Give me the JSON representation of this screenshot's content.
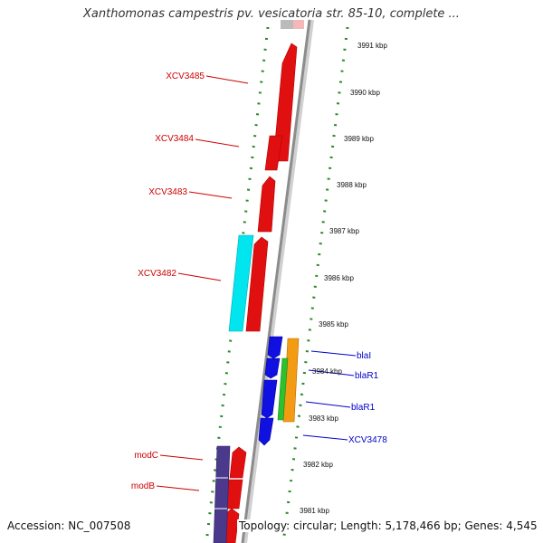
{
  "title": "Xanthomonas campestris pv. vesicatoria str. 85-10, complete ...",
  "accession": "Accession: NC_007508",
  "topology": "Topology: circular; Length: 5,178,466 bp; Genes: 4,545",
  "colors": {
    "forward_label": "#cc0000",
    "reverse_label": "#0000cc",
    "tick_marks": "#2a8a2a",
    "backbone": "#9a9a9a"
  },
  "scale_labels": [
    "3991 kbp",
    "3990 kbp",
    "3989 kbp",
    "3988 kbp",
    "3987 kbp",
    "3986 kbp",
    "3985 kbp",
    "3984 kbp",
    "3983 kbp",
    "3982 kbp",
    "3981 kbp"
  ],
  "left_gene_labels": [
    "XCV3485",
    "XCV3484",
    "XCV3483",
    "XCV3482",
    "modC",
    "modB"
  ],
  "right_gene_labels": [
    "blaI",
    "blaR1",
    "blaR1",
    "XCV3478"
  ]
}
